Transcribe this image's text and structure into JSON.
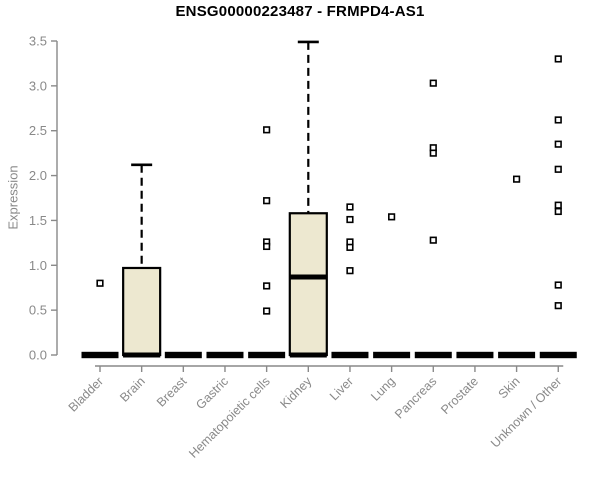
{
  "chart_data": {
    "type": "boxplot",
    "title": "ENSG00000223487 - FRMPD4-AS1",
    "ylabel": "Expression",
    "ylim": [
      0,
      3.5
    ],
    "yticks": [
      "0.0",
      "0.5",
      "1.0",
      "1.5",
      "2.0",
      "2.5",
      "3.0",
      "3.5"
    ],
    "grid": false,
    "legend": "none",
    "categories": [
      "Bladder",
      "Brain",
      "Breast",
      "Gastric",
      "Hematopoietic cells",
      "Kidney",
      "Liver",
      "Lung",
      "Pancreas",
      "Prostate",
      "Skin",
      "Unknown / Other"
    ],
    "boxes": [
      {
        "category": "Bladder",
        "q1": 0,
        "median": 0,
        "q3": 0,
        "whisker_low": 0,
        "whisker_high": 0,
        "outliers": [
          0.8
        ]
      },
      {
        "category": "Brain",
        "q1": 0,
        "median": 0,
        "q3": 0.97,
        "whisker_low": 0,
        "whisker_high": 2.12,
        "outliers": []
      },
      {
        "category": "Breast",
        "q1": 0,
        "median": 0,
        "q3": 0,
        "whisker_low": 0,
        "whisker_high": 0,
        "outliers": []
      },
      {
        "category": "Gastric",
        "q1": 0,
        "median": 0,
        "q3": 0,
        "whisker_low": 0,
        "whisker_high": 0,
        "outliers": []
      },
      {
        "category": "Hematopoietic cells",
        "q1": 0,
        "median": 0,
        "q3": 0,
        "whisker_low": 0,
        "whisker_high": 0,
        "outliers": [
          2.51,
          1.72,
          1.26,
          1.21,
          0.77,
          0.49
        ]
      },
      {
        "category": "Kidney",
        "q1": 0,
        "median": 0.87,
        "q3": 1.58,
        "whisker_low": 0,
        "whisker_high": 3.49,
        "outliers": []
      },
      {
        "category": "Liver",
        "q1": 0,
        "median": 0,
        "q3": 0,
        "whisker_low": 0,
        "whisker_high": 0,
        "outliers": [
          1.65,
          1.51,
          1.26,
          1.2,
          0.94
        ]
      },
      {
        "category": "Lung",
        "q1": 0,
        "median": 0,
        "q3": 0,
        "whisker_low": 0,
        "whisker_high": 0,
        "outliers": [
          1.54
        ]
      },
      {
        "category": "Pancreas",
        "q1": 0,
        "median": 0,
        "q3": 0,
        "whisker_low": 0,
        "whisker_high": 0,
        "outliers": [
          3.03,
          2.31,
          2.25,
          1.28
        ]
      },
      {
        "category": "Prostate",
        "q1": 0,
        "median": 0,
        "q3": 0,
        "whisker_low": 0,
        "whisker_high": 0,
        "outliers": []
      },
      {
        "category": "Skin",
        "q1": 0,
        "median": 0,
        "q3": 0,
        "whisker_low": 0,
        "whisker_high": 0,
        "outliers": [
          1.96
        ]
      },
      {
        "category": "Unknown / Other",
        "q1": 0,
        "median": 0,
        "q3": 0,
        "whisker_low": 0,
        "whisker_high": 0,
        "outliers": [
          3.3,
          2.62,
          2.35,
          2.07,
          1.67,
          1.6,
          0.78,
          0.55
        ]
      }
    ],
    "colors": {
      "box_fill": "#EDE8D0",
      "box_border": "#000000",
      "median": "#000000",
      "whisker": "#000000",
      "outlier_stroke": "#000000",
      "outlier_fill": "#FFFFFF",
      "axis": "#898989",
      "tick_label": "#898989",
      "title": "#000000",
      "background": "#FFFFFF"
    }
  }
}
